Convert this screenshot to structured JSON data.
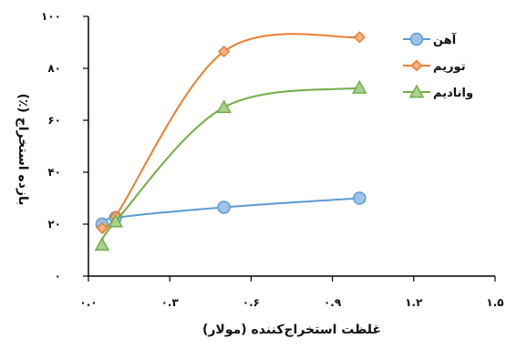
{
  "chart_data": {
    "type": "line",
    "title": "",
    "xlabel": "غلظت استخراج‌کننده (مولار)",
    "ylabel": "بازده استخراج (٪)",
    "xlim": [
      0,
      1.5
    ],
    "ylim": [
      0,
      100
    ],
    "x_ticks": [
      0,
      0.3,
      0.6,
      0.9,
      1.2,
      1.5
    ],
    "x_tick_labels": [
      "۰.۰",
      "۰.۳",
      "۰.۶",
      "۰.۹",
      "۱.۲",
      "۱.۵"
    ],
    "y_ticks": [
      0,
      20,
      40,
      60,
      80,
      100
    ],
    "y_tick_labels": [
      "۰",
      "۲۰",
      "۴۰",
      "۶۰",
      "۸۰",
      "۱۰۰"
    ],
    "grid": false,
    "legend_position": "top-right",
    "series": [
      {
        "name": "آهن",
        "color": "#5b9bd5",
        "marker_fill": "#9dc3e6",
        "marker": "circle",
        "x": [
          0.05,
          0.1,
          0.5,
          1.0
        ],
        "y": [
          20,
          22.5,
          26.5,
          30
        ]
      },
      {
        "name": "توریم",
        "color": "#ed7d31",
        "marker_fill": "#f4b183",
        "marker": "diamond",
        "x": [
          0.05,
          0.1,
          0.5,
          1.0
        ],
        "y": [
          18.5,
          23,
          86.5,
          92
        ]
      },
      {
        "name": "وانادیم",
        "color": "#70ad47",
        "marker_fill": "#a9d18e",
        "marker": "triangle",
        "x": [
          0.05,
          0.1,
          0.5,
          1.0
        ],
        "y": [
          12,
          21,
          65,
          72.5
        ]
      }
    ]
  }
}
